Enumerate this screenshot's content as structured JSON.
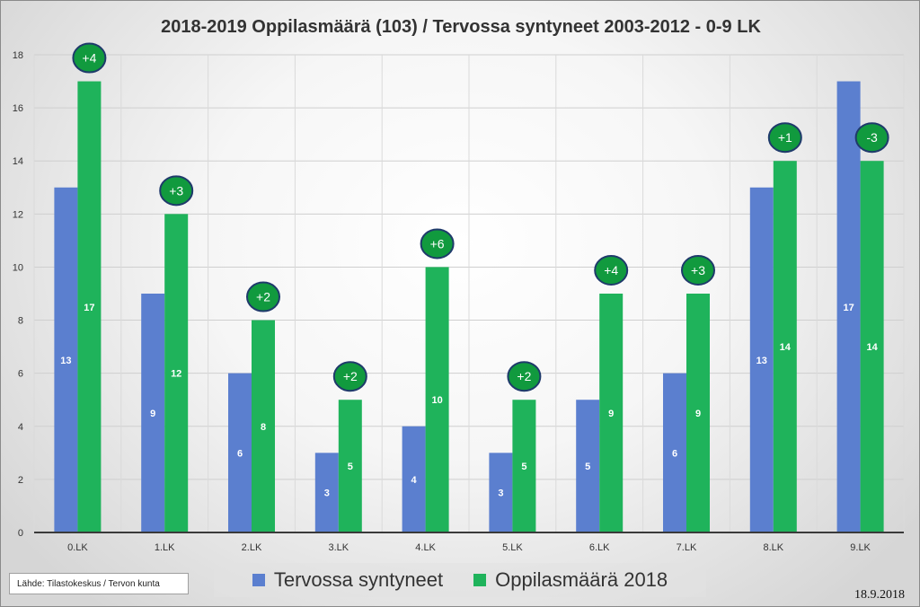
{
  "chart_data": {
    "type": "bar",
    "title": "2018-2019 Oppilasmäärä (103) / Tervossa syntyneet 2003-2012 - 0-9 LK",
    "xlabel": "",
    "ylabel": "",
    "ylim": [
      0,
      18
    ],
    "yticks": [
      0,
      2,
      4,
      6,
      8,
      10,
      12,
      14,
      16,
      18
    ],
    "categories": [
      "0.LK",
      "1.LK",
      "2.LK",
      "3.LK",
      "4.LK",
      "5.LK",
      "6.LK",
      "7.LK",
      "8.LK",
      "9.LK"
    ],
    "series": [
      {
        "name": "Tervossa syntyneet",
        "color": "#5b7fcf",
        "values": [
          13,
          9,
          6,
          3,
          4,
          3,
          5,
          6,
          13,
          17
        ]
      },
      {
        "name": "Oppilasmäärä 2018",
        "color": "#1fb35b",
        "values": [
          17,
          12,
          8,
          5,
          10,
          5,
          9,
          9,
          14,
          14
        ]
      }
    ],
    "annotations": [
      "+4",
      "+3",
      "+2",
      "+2",
      "+6",
      "+2",
      "+4",
      "+3",
      "+1",
      "-3"
    ],
    "annotation_color": "#119a3e",
    "annotation_border": "#1f3a6b",
    "grid": true,
    "legend": "bottom-center"
  },
  "source": "Lähde: Tilastokeskus / Tervon kunta",
  "date": "18.9.2018"
}
